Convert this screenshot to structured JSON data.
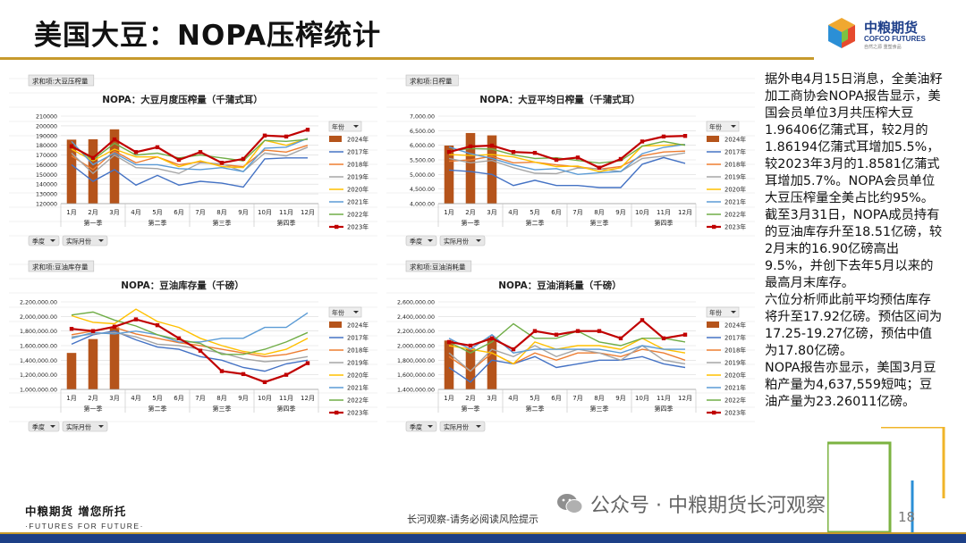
{
  "slide": {
    "title": "美国大豆：NOPA压榨统计",
    "page_number": "18",
    "footer_note": "长河观察-请务必阅读风险提示",
    "watermark": "公众号 · 中粮期货长河观察",
    "footer_logo_cn": "中粮期货 增您所托",
    "footer_logo_en": "·FUTURES FOR FUTURE·",
    "logo_cn": "中粮期货",
    "logo_en": "COFCO FUTURES",
    "logo_slogan": "自然之源 重塑食品",
    "colors": {
      "title_line": "#c79a2c",
      "brand_blue": "#1e3f8a"
    }
  },
  "sidebar_text": [
    "据外电4月15日消息，全美油籽加工商协会NOPA报告显示，美国会员单位3月共压榨大豆1.96406亿蒲式耳，较2月的1.86194亿蒲式耳增加5.5%，较2023年3月的1.8581亿蒲式耳增加5.7%。NOPA会员单位大豆压榨量全美占比约95%。",
    "截至3月31日，NOPA成员持有的豆油库存升至18.51亿磅，较2月末的16.90亿磅高出9.5%，并创下去年5月以来的最高月末库存。",
    "六位分析师此前平均预估库存将升至17.92亿磅。预估区间为17.25-19.27亿磅，预估中值为17.80亿磅。",
    "NOPA报告亦显示，美国3月豆粕产量为4,637,559短吨；豆油产量为23.26011亿磅。"
  ],
  "chart_data": [
    {
      "type": "line",
      "title": "NOPA：大豆月度压榨量（千蒲式耳）",
      "field_tag": "求和项:大豆压榨量",
      "legend_header": "年份",
      "filters": [
        "季度",
        "实际月份"
      ],
      "categories": [
        "1月",
        "2月",
        "3月",
        "4月",
        "5月",
        "6月",
        "7月",
        "8月",
        "9月",
        "10月",
        "11月",
        "12月"
      ],
      "quarters": [
        "第一季",
        "第二季",
        "第三季",
        "第四季"
      ],
      "ylim": [
        120000,
        210000
      ],
      "yticks": [
        120000,
        130000,
        140000,
        150000,
        160000,
        170000,
        180000,
        190000,
        200000,
        210000
      ],
      "ytick_labels": [
        "120000",
        "130000",
        "140000",
        "150000",
        "160000",
        "170000",
        "180000",
        "190000",
        "200000",
        "210000"
      ],
      "bar_series": {
        "name": "2024年",
        "color": "#b5541b",
        "values": [
          185800,
          186200,
          196400
        ]
      },
      "series": [
        {
          "name": "2017年",
          "color": "#4472c4",
          "values": [
            160000,
            143000,
            155000,
            139000,
            149000,
            139000,
            143000,
            141000,
            137000,
            166000,
            167000,
            167000
          ]
        },
        {
          "name": "2018年",
          "color": "#ed7d31",
          "values": [
            169000,
            155000,
            174000,
            162000,
            168000,
            160000,
            163000,
            160000,
            158000,
            175000,
            173000,
            180000
          ]
        },
        {
          "name": "2019年",
          "color": "#a5a5a5",
          "values": [
            172000,
            151000,
            170000,
            157000,
            156000,
            151000,
            162000,
            161000,
            153000,
            172000,
            169000,
            178000
          ]
        },
        {
          "name": "2020年",
          "color": "#ffc000",
          "values": [
            176000,
            164000,
            176000,
            168000,
            168000,
            158000,
            164000,
            158000,
            157000,
            185000,
            180000,
            187000
          ]
        },
        {
          "name": "2021年",
          "color": "#5b9bd5",
          "values": [
            184000,
            160000,
            172000,
            160000,
            160000,
            156000,
            155000,
            157000,
            153000,
            177000,
            178000,
            187000
          ]
        },
        {
          "name": "2022年",
          "color": "#70ad47",
          "values": [
            180000,
            165000,
            182000,
            170000,
            172000,
            167000,
            170000,
            167000,
            164000,
            185000,
            184000,
            186000
          ]
        },
        {
          "name": "2023年",
          "color": "#c00000",
          "values": [
            179000,
            167000,
            186000,
            173000,
            178000,
            165000,
            173000,
            162000,
            166000,
            190000,
            189000,
            196000
          ]
        }
      ]
    },
    {
      "type": "line",
      "title": "NOPA：大豆平均日榨量（千蒲式耳）",
      "field_tag": "求和项:日榨量",
      "legend_header": "年份",
      "filters": [
        "季度",
        "实际月份"
      ],
      "categories": [
        "1月",
        "2月",
        "3月",
        "4月",
        "5月",
        "6月",
        "7月",
        "8月",
        "9月",
        "10月",
        "11月",
        "12月"
      ],
      "quarters": [
        "第一季",
        "第二季",
        "第三季",
        "第四季"
      ],
      "ylim": [
        4000,
        7000
      ],
      "yticks": [
        4000,
        4500,
        5000,
        5500,
        6000,
        6500,
        7000
      ],
      "ytick_labels": [
        "4,000.00",
        "4,500.00",
        "5,000.00",
        "5,500.00",
        "6,000.00",
        "6,500.00",
        "7,000.00"
      ],
      "bar_series": {
        "name": "2024年",
        "color": "#b5541b",
        "values": [
          5990,
          6420,
          6340
        ]
      },
      "series": [
        {
          "name": "2017年",
          "color": "#4472c4",
          "values": [
            5150,
            5100,
            5000,
            4620,
            4800,
            4620,
            4620,
            4550,
            4550,
            5350,
            5580,
            5380
          ]
        },
        {
          "name": "2018年",
          "color": "#ed7d31",
          "values": [
            5450,
            5500,
            5620,
            5400,
            5420,
            5330,
            5260,
            5180,
            5270,
            5640,
            5770,
            5800
          ]
        },
        {
          "name": "2019年",
          "color": "#a5a5a5",
          "values": [
            5550,
            5400,
            5480,
            5230,
            5040,
            5030,
            5220,
            5190,
            5100,
            5550,
            5630,
            5740
          ]
        },
        {
          "name": "2020年",
          "color": "#ffc000",
          "values": [
            5680,
            5650,
            5680,
            5600,
            5420,
            5270,
            5290,
            5100,
            5230,
            5970,
            6000,
            6030
          ]
        },
        {
          "name": "2021年",
          "color": "#5b9bd5",
          "values": [
            5940,
            5710,
            5550,
            5330,
            5160,
            5200,
            5000,
            5060,
            5100,
            5710,
            5930,
            6030
          ]
        },
        {
          "name": "2022年",
          "color": "#70ad47",
          "values": [
            5810,
            5890,
            5870,
            5670,
            5550,
            5570,
            5480,
            5390,
            5470,
            5970,
            6130,
            6000
          ]
        },
        {
          "name": "2023年",
          "color": "#c00000",
          "values": [
            5770,
            5960,
            5990,
            5770,
            5740,
            5500,
            5580,
            5230,
            5530,
            6130,
            6300,
            6320
          ]
        }
      ]
    },
    {
      "type": "line",
      "title": "NOPA：豆油库存量（千磅）",
      "field_tag": "求和项:豆油库存量",
      "legend_header": "年份",
      "filters": [
        "季度",
        "实际月份"
      ],
      "categories": [
        "1月",
        "2月",
        "3月",
        "4月",
        "5月",
        "6月",
        "7月",
        "8月",
        "9月",
        "10月",
        "11月",
        "12月"
      ],
      "quarters": [
        "第一季",
        "第二季",
        "第三季",
        "第四季"
      ],
      "ylim": [
        1000000,
        2200000
      ],
      "yticks": [
        1000000,
        1200000,
        1400000,
        1600000,
        1800000,
        2000000,
        2200000
      ],
      "ytick_labels": [
        "1,000,000.00",
        "1,200,000.00",
        "1,400,000.00",
        "1,600,000.00",
        "1,800,000.00",
        "2,000,000.00",
        "2,200,000.00"
      ],
      "bar_series": {
        "name": "2024年",
        "color": "#b5541b",
        "values": [
          1500000,
          1690000,
          1851000
        ]
      },
      "series": [
        {
          "name": "2017年",
          "color": "#4472c4",
          "values": [
            1620000,
            1750000,
            1800000,
            1680000,
            1580000,
            1550000,
            1450000,
            1400000,
            1300000,
            1250000,
            1350000,
            1400000
          ]
        },
        {
          "name": "2018年",
          "color": "#ed7d31",
          "values": [
            1750000,
            1800000,
            1850000,
            1760000,
            1700000,
            1640000,
            1600000,
            1550000,
            1500000,
            1450000,
            1480000,
            1550000
          ]
        },
        {
          "name": "2019年",
          "color": "#a5a5a5",
          "values": [
            1720000,
            1760000,
            1780000,
            1720000,
            1620000,
            1600000,
            1550000,
            1500000,
            1420000,
            1380000,
            1400000,
            1450000
          ]
        },
        {
          "name": "2020年",
          "color": "#ffc000",
          "values": [
            2010000,
            1920000,
            1900000,
            2100000,
            1930000,
            1850000,
            1700000,
            1600000,
            1520000,
            1480000,
            1550000,
            1700000
          ]
        },
        {
          "name": "2021年",
          "color": "#5b9bd5",
          "values": [
            1700000,
            1780000,
            1760000,
            1800000,
            1750000,
            1650000,
            1650000,
            1700000,
            1700000,
            1850000,
            1850000,
            2050000
          ]
        },
        {
          "name": "2022年",
          "color": "#70ad47",
          "values": [
            2020000,
            2060000,
            1950000,
            1870000,
            1750000,
            1680000,
            1630000,
            1480000,
            1480000,
            1550000,
            1650000,
            1780000
          ]
        },
        {
          "name": "2023年",
          "color": "#c00000",
          "values": [
            1830000,
            1800000,
            1860000,
            1960000,
            1880000,
            1700000,
            1530000,
            1250000,
            1210000,
            1100000,
            1200000,
            1360000
          ]
        }
      ]
    },
    {
      "type": "line",
      "title": "NOPA：豆油消耗量（千磅）",
      "field_tag": "求和项:豆油消耗量",
      "legend_header": "年份",
      "filters": [
        "季度",
        "实际月份"
      ],
      "categories": [
        "1月",
        "2月",
        "3月",
        "4月",
        "5月",
        "6月",
        "7月",
        "8月",
        "9月",
        "10月",
        "11月",
        "12月"
      ],
      "quarters": [
        "第一季",
        "第二季",
        "第三季",
        "第四季"
      ],
      "ylim": [
        1400000,
        2600000
      ],
      "yticks": [
        1400000,
        1600000,
        1800000,
        2000000,
        2200000,
        2400000,
        2600000
      ],
      "ytick_labels": [
        "1,400,000.00",
        "1,600,000.00",
        "1,800,000.00",
        "2,000,000.00",
        "2,200,000.00",
        "2,400,000.00",
        "2,600,000.00"
      ],
      "bar_series": {
        "name": "2024年",
        "color": "#b5541b",
        "values": [
          2070000,
          1960000,
          2110000
        ]
      },
      "series": [
        {
          "name": "2017年",
          "color": "#4472c4",
          "values": [
            1700000,
            1500000,
            1800000,
            1750000,
            1850000,
            1700000,
            1750000,
            1800000,
            1800000,
            1850000,
            1750000,
            1700000
          ]
        },
        {
          "name": "2018年",
          "color": "#ed7d31",
          "values": [
            1850000,
            1650000,
            1900000,
            1750000,
            1900000,
            1800000,
            1900000,
            1900000,
            1850000,
            1950000,
            1900000,
            1800000
          ]
        },
        {
          "name": "2019年",
          "color": "#a5a5a5",
          "values": [
            1900000,
            1650000,
            1950000,
            1850000,
            2000000,
            1850000,
            1950000,
            1900000,
            1800000,
            2000000,
            1800000,
            1750000
          ]
        },
        {
          "name": "2020年",
          "color": "#ffc000",
          "values": [
            2000000,
            1950000,
            1900000,
            1750000,
            2050000,
            1950000,
            2000000,
            2000000,
            1950000,
            2100000,
            1950000,
            1900000
          ]
        },
        {
          "name": "2021年",
          "color": "#5b9bd5",
          "values": [
            2100000,
            1950000,
            2150000,
            1900000,
            1950000,
            1950000,
            1950000,
            1950000,
            1900000,
            2000000,
            1950000,
            1950000
          ]
        },
        {
          "name": "2022年",
          "color": "#70ad47",
          "values": [
            2050000,
            1900000,
            2050000,
            2300000,
            2100000,
            2100000,
            2200000,
            2050000,
            2000000,
            2100000,
            2100000,
            2050000
          ]
        },
        {
          "name": "2023年",
          "color": "#c00000",
          "values": [
            2050000,
            2000000,
            2100000,
            1950000,
            2200000,
            2150000,
            2200000,
            2200000,
            2100000,
            2350000,
            2100000,
            2150000
          ]
        }
      ]
    }
  ]
}
